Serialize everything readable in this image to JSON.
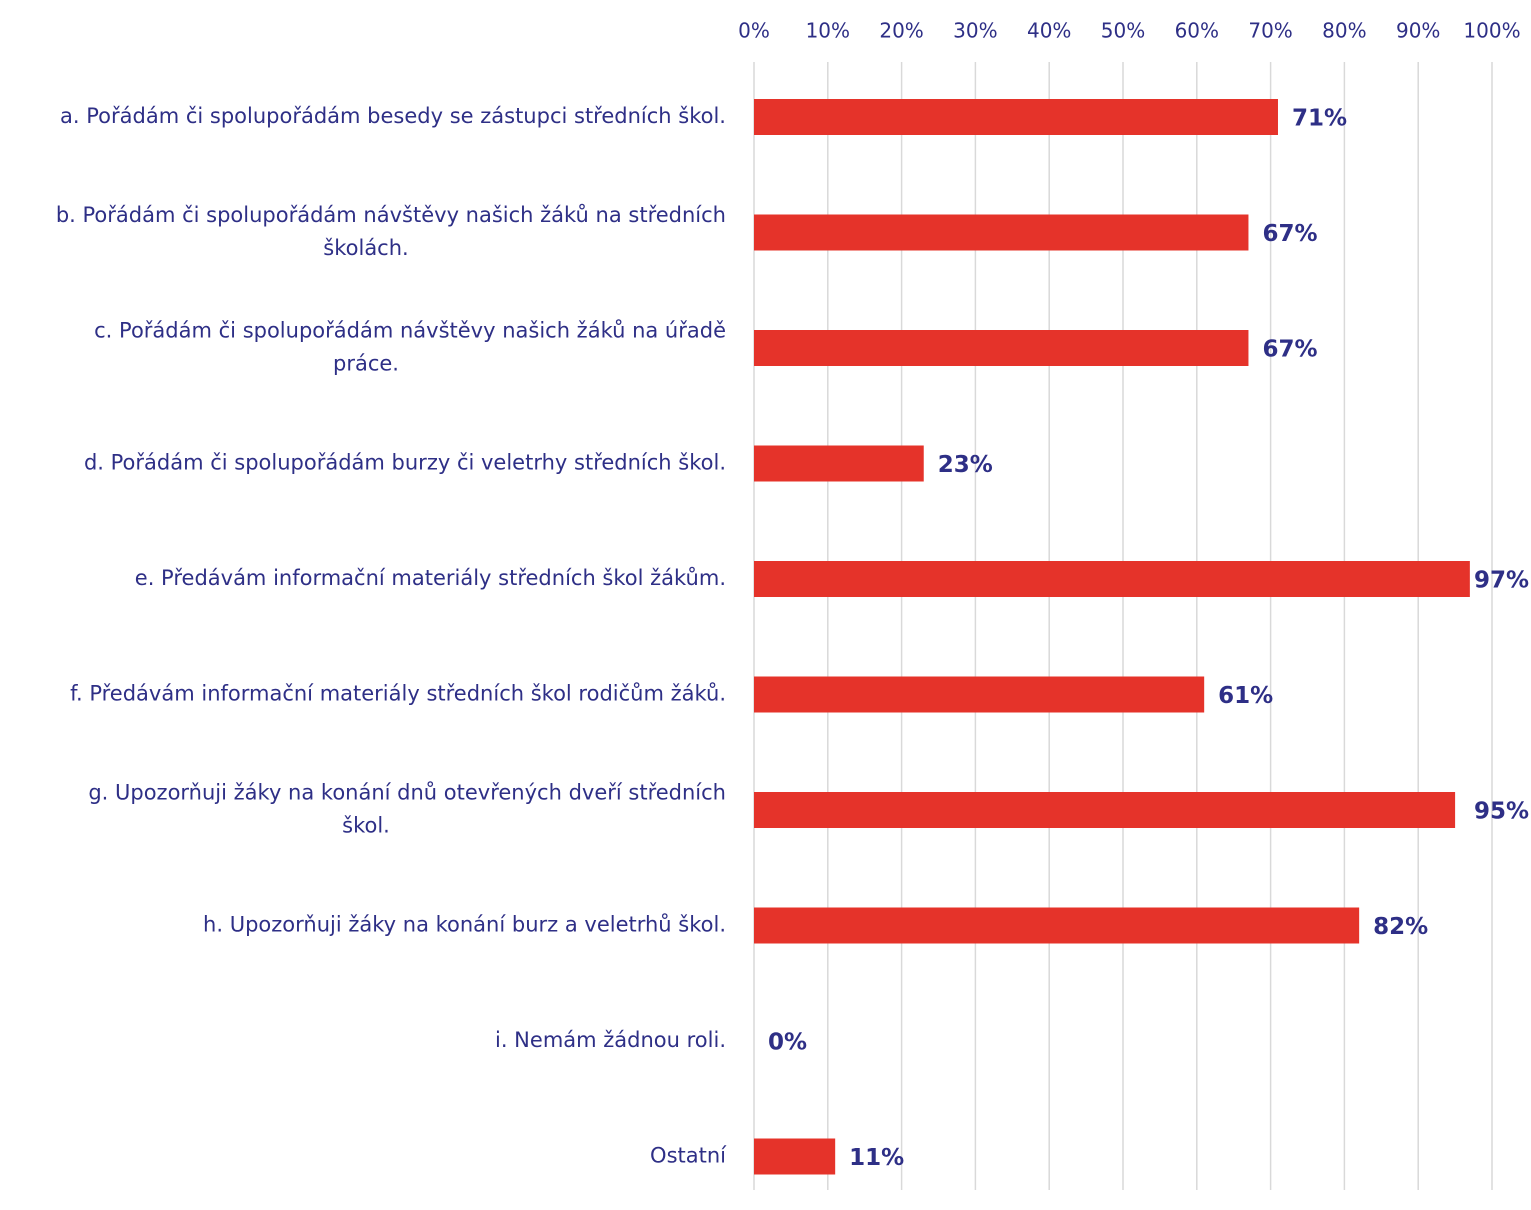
{
  "chart_data": {
    "type": "bar",
    "orientation": "horizontal",
    "title": "",
    "xlabel": "",
    "ylabel": "",
    "xlim": [
      0,
      100
    ],
    "grid": true,
    "legend": "none",
    "tick_labels": [
      "0%",
      "10%",
      "20%",
      "30%",
      "40%",
      "50%",
      "60%",
      "70%",
      "80%",
      "90%",
      "100%"
    ],
    "categories": [
      [
        "a. Pořádám či spolupořádám besedy se zástupci středních škol."
      ],
      [
        "b. Pořádám či spolupořádám návštěvy našich žáků na středních",
        "školách."
      ],
      [
        "c. Pořádám či spolupořádám návštěvy našich žáků na úřadě",
        "práce."
      ],
      [
        "d. Pořádám či spolupořádám burzy či veletrhy středních škol."
      ],
      [
        "e. Předávám informační materiály středních škol žákům."
      ],
      [
        "f. Předávám informační materiály středních škol rodičům žáků."
      ],
      [
        "g. Upozorňuji žáky na konání dnů otevřených dveří středních",
        "škol."
      ],
      [
        "h. Upozorňuji žáky na konání burz a veletrhů škol."
      ],
      [
        "i. Nemám žádnou roli."
      ],
      [
        "Ostatní"
      ]
    ],
    "values": [
      71,
      67,
      67,
      23,
      97,
      61,
      95,
      82,
      0,
      11
    ],
    "data_labels": [
      "71%",
      "67%",
      "67%",
      "23%",
      "97%",
      "61%",
      "95%",
      "82%",
      "0%",
      "11%"
    ]
  },
  "colors": {
    "bar": "#e5332a",
    "text": "#2e2f86",
    "grid": "#d9d9d9"
  }
}
